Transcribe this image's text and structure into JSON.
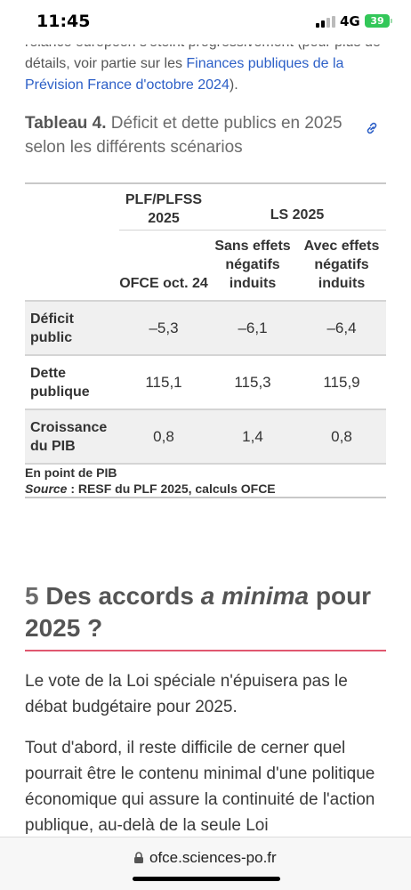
{
  "status": {
    "time": "11:45",
    "network": "4G",
    "battery": "39"
  },
  "prev_paragraph": {
    "text": "relance européen s'éteint progressivement (pour plus de détails, voir partie sur les ",
    "link": "Finances publiques de la Prévision France d'octobre 2024",
    "tail": ")."
  },
  "table": {
    "caption_label": "Tableau 4.",
    "caption_text": " Déficit et dette publics en 2025 selon les différents scénarios",
    "group1": "PLF/PLFSS 2025",
    "group2": "LS 2025",
    "sub1": "OFCE oct. 24",
    "sub2": "Sans effets négatifs induits",
    "sub3": "Avec effets négatifs induits",
    "rows": [
      {
        "label": "Déficit public",
        "v1": "–5,3",
        "v2": "–6,1",
        "v3": "–6,4"
      },
      {
        "label": "Dette publique",
        "v1": "115,1",
        "v2": "115,3",
        "v3": "115,9"
      },
      {
        "label": "Croissance du PIB",
        "v1": "0,8",
        "v2": "1,4",
        "v3": "0,8"
      }
    ],
    "note_unit": "En point de PIB",
    "note_source_label": "Source",
    "note_source_text": " : RESF du PLF 2025, calculs OFCE"
  },
  "section": {
    "number": "5",
    "title_a": " Des accords ",
    "title_italic": "a minima",
    "title_b": " pour 2025 ?"
  },
  "paragraphs": [
    "Le vote de la Loi spéciale n'épuisera pas le débat budgétaire pour 2025.",
    "Tout d'abord, il reste difficile de cerner quel pourrait être le contenu minimal d'une politique économique qui assure la continuité de l'action publique, au-delà de la seule Loi"
  ],
  "urlbar": {
    "url": "ofce.sciences-po.fr"
  },
  "colors": {
    "link": "#2c5fc7",
    "accent_rule": "#e0576f",
    "battery": "#33c759"
  },
  "icons": [
    "signal-icon",
    "battery-icon",
    "link-icon",
    "lock-icon"
  ]
}
